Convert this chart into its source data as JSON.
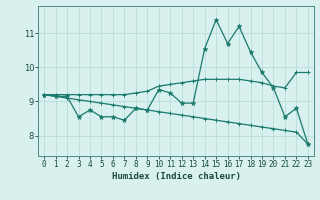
{
  "x": [
    0,
    1,
    2,
    3,
    4,
    5,
    6,
    7,
    8,
    9,
    10,
    11,
    12,
    13,
    14,
    15,
    16,
    17,
    18,
    19,
    20,
    21,
    22,
    23
  ],
  "line_main": [
    9.2,
    9.15,
    9.15,
    8.55,
    8.75,
    8.55,
    8.55,
    8.45,
    8.8,
    8.75,
    9.35,
    9.25,
    8.95,
    8.95,
    10.55,
    11.4,
    10.7,
    11.2,
    10.45,
    9.85,
    9.4,
    8.55,
    8.8,
    7.75
  ],
  "line_upper": [
    9.2,
    9.2,
    9.2,
    9.2,
    9.2,
    9.2,
    9.2,
    9.2,
    9.25,
    9.3,
    9.45,
    9.5,
    9.55,
    9.6,
    9.65,
    9.65,
    9.65,
    9.65,
    9.6,
    9.55,
    9.45,
    9.4,
    9.85,
    9.85
  ],
  "line_lower": [
    9.2,
    9.15,
    9.1,
    9.05,
    9.0,
    8.95,
    8.9,
    8.85,
    8.8,
    8.75,
    8.7,
    8.65,
    8.6,
    8.55,
    8.5,
    8.45,
    8.4,
    8.35,
    8.3,
    8.25,
    8.2,
    8.15,
    8.1,
    7.75
  ],
  "bg_color": "#d8f0ee",
  "grid_color": "#b8deda",
  "line_color": "#1a7a6e",
  "xlabel": "Humidex (Indice chaleur)",
  "yticks": [
    8,
    9,
    10,
    11
  ],
  "ylim": [
    7.4,
    11.8
  ],
  "xlim": [
    -0.5,
    23.5
  ],
  "tick_fontsize": 5.5,
  "xlabel_fontsize": 6.5,
  "ylabel_fontsize": 6.5
}
